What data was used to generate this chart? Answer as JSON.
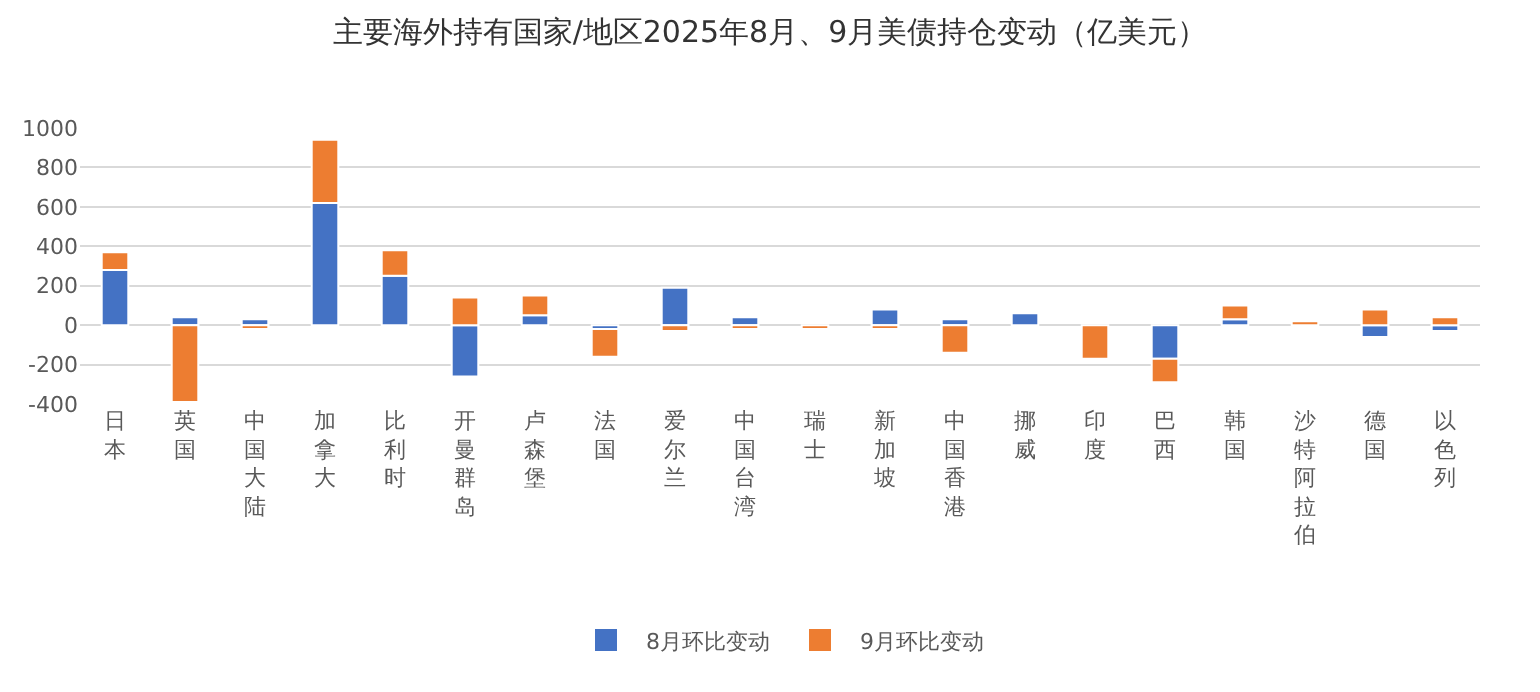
{
  "chart_data": {
    "type": "bar",
    "title": "主要海外持有国家/地区2025年8月、9月美债持仓变动（亿美元）",
    "categories": [
      "日本",
      "英国",
      "中国大陆",
      "加拿大",
      "比利时",
      "开曼群岛",
      "卢森堡",
      "法国",
      "爱尔兰",
      "中国台湾",
      "瑞士",
      "新加坡",
      "中国香港",
      "挪威",
      "印度",
      "巴西",
      "韩国",
      "沙特阿拉伯",
      "德国",
      "以色列"
    ],
    "series": [
      {
        "name": "8月环比变动",
        "color": "#4472c4",
        "values": [
          280,
          40,
          30,
          620,
          250,
          -260,
          50,
          -20,
          190,
          40,
          null,
          80,
          30,
          60,
          null,
          -170,
          30,
          null,
          -60,
          -30
        ]
      },
      {
        "name": "9月环比变动",
        "color": "#ed7d31",
        "values": [
          90,
          -390,
          -20,
          320,
          130,
          140,
          100,
          -140,
          -30,
          -20,
          -20,
          -20,
          -140,
          null,
          -170,
          -120,
          70,
          20,
          80,
          40
        ]
      }
    ],
    "stacked": true,
    "ylim": [
      -400,
      1000
    ],
    "yticks": [
      -400,
      -200,
      0,
      200,
      400,
      600,
      800,
      1000
    ],
    "grid": "y",
    "legend": "bottom"
  }
}
